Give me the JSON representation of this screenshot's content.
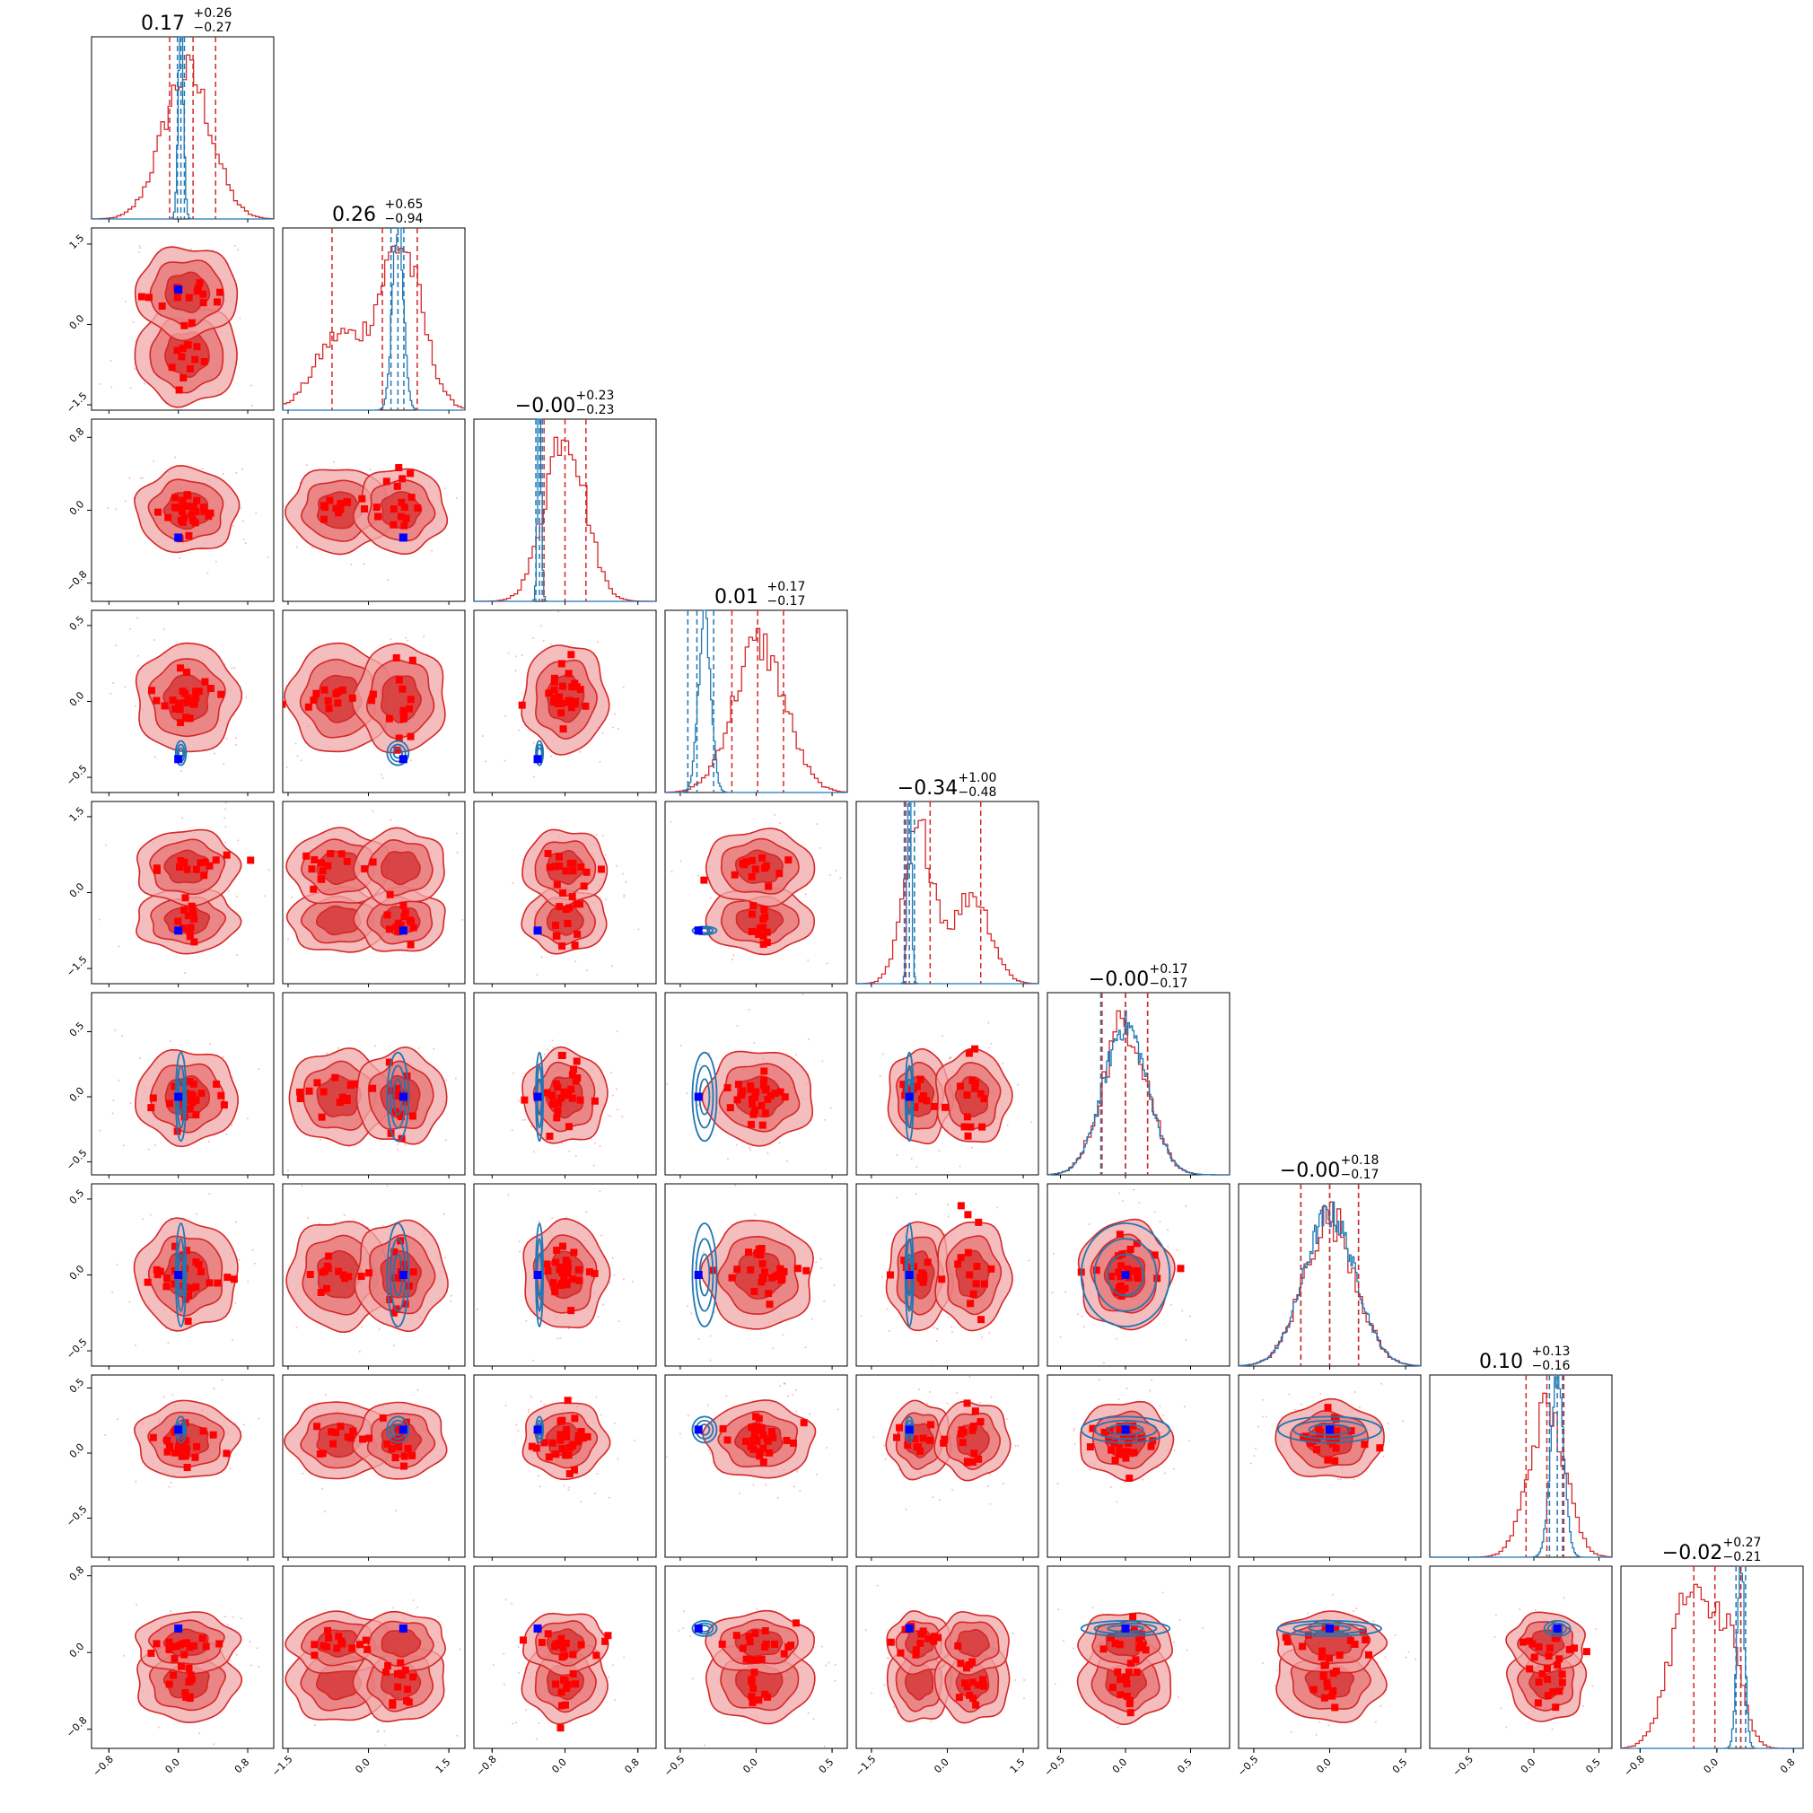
{
  "chart_data": {
    "type": "corner",
    "n_params": 9,
    "colors": {
      "posterior": "#d62728",
      "reference": "#1f77b4",
      "truth_marker": "#0000ff",
      "frame": "#000000"
    },
    "diagonal_titles": [
      {
        "median": "0.17",
        "plus": "+0.26",
        "minus": "−0.27"
      },
      {
        "median": "0.26",
        "plus": "+0.65",
        "minus": "−0.94"
      },
      {
        "median": "−0.00",
        "plus": "+0.23",
        "minus": "−0.23"
      },
      {
        "median": "0.01",
        "plus": "+0.17",
        "minus": "−0.17"
      },
      {
        "median": "−0.34",
        "plus": "+1.00",
        "minus": "−0.48"
      },
      {
        "median": "−0.00",
        "plus": "+0.17",
        "minus": "−0.17"
      },
      {
        "median": "−0.00",
        "plus": "+0.18",
        "minus": "−0.17"
      },
      {
        "median": "0.10",
        "plus": "+0.13",
        "minus": "−0.16"
      },
      {
        "median": "−0.02",
        "plus": "+0.27",
        "minus": "−0.21"
      }
    ],
    "params": [
      {
        "range": [
          -1.0,
          1.1
        ],
        "ticks": [
          -0.8,
          0.0,
          0.8
        ],
        "tick_labels": [
          "−0.8",
          "0.0",
          "0.8"
        ],
        "truth": 0.0,
        "red_modes": [
          [
            0.1,
            0.28,
            1.0
          ]
        ],
        "red_quantiles": [
          -0.1,
          0.17,
          0.43
        ],
        "blue_mean": 0.03,
        "blue_sd": 0.03,
        "blue_quantiles": [
          -0.01,
          0.03,
          0.07
        ]
      },
      {
        "range": [
          -1.6,
          1.8
        ],
        "ticks": [
          -1.5,
          0.0,
          1.5
        ],
        "tick_labels": [
          "−1.5",
          "0.0",
          "1.5"
        ],
        "truth": 0.65,
        "red_modes": [
          [
            -0.55,
            0.45,
            0.45
          ],
          [
            0.6,
            0.4,
            1.0
          ]
        ],
        "red_quantiles": [
          -0.68,
          0.26,
          0.91
        ],
        "blue_mean": 0.55,
        "blue_sd": 0.1,
        "blue_quantiles": [
          0.42,
          0.55,
          0.66
        ]
      },
      {
        "range": [
          -1.0,
          1.0
        ],
        "ticks": [
          -0.8,
          0.0,
          0.8
        ],
        "tick_labels": [
          "−0.8",
          "0.0",
          "0.8"
        ],
        "truth": -0.3,
        "red_modes": [
          [
            0.0,
            0.22,
            1.0
          ]
        ],
        "red_quantiles": [
          -0.23,
          0.0,
          0.23
        ],
        "blue_mean": -0.28,
        "blue_sd": 0.02,
        "blue_quantiles": [
          -0.32,
          -0.28,
          -0.25
        ]
      },
      {
        "range": [
          -0.6,
          0.6
        ],
        "ticks": [
          -0.5,
          0.0,
          0.5
        ],
        "tick_labels": [
          "−0.5",
          "0.0",
          "0.5"
        ],
        "truth": -0.38,
        "red_modes": [
          [
            0.02,
            0.17,
            1.0
          ]
        ],
        "red_quantiles": [
          -0.16,
          0.01,
          0.18
        ],
        "blue_mean": -0.34,
        "blue_sd": 0.04,
        "blue_quantiles": [
          -0.45,
          -0.39,
          -0.28
        ]
      },
      {
        "range": [
          -1.8,
          1.8
        ],
        "ticks": [
          -1.5,
          0.0,
          1.5
        ],
        "tick_labels": [
          "−1.5",
          "0.0",
          "1.5"
        ],
        "truth": -0.75,
        "red_modes": [
          [
            -0.55,
            0.3,
            1.0
          ],
          [
            0.5,
            0.35,
            0.6
          ]
        ],
        "red_quantiles": [
          -0.82,
          -0.34,
          0.66
        ],
        "blue_mean": -0.75,
        "blue_sd": 0.04,
        "blue_quantiles": [
          -0.85,
          -0.75,
          -0.65
        ]
      },
      {
        "range": [
          -0.6,
          0.8
        ],
        "ticks": [
          -0.5,
          0.0,
          0.5
        ],
        "tick_labels": [
          "−0.5",
          "0.0",
          "0.5"
        ],
        "truth": 0.0,
        "red_modes": [
          [
            0.0,
            0.17,
            1.0
          ]
        ],
        "red_quantiles": [
          -0.18,
          0.0,
          0.17
        ],
        "blue_mean": 0.0,
        "blue_sd": 0.17,
        "blue_quantiles": [
          -0.19,
          0.0,
          0.17
        ]
      },
      {
        "range": [
          -0.6,
          0.6
        ],
        "ticks": [
          -0.5,
          0.0,
          0.5
        ],
        "tick_labels": [
          "−0.5",
          "0.0",
          "0.5"
        ],
        "truth": 0.0,
        "red_modes": [
          [
            0.0,
            0.17,
            1.0
          ]
        ],
        "red_quantiles": [
          -0.19,
          0.0,
          0.19
        ],
        "blue_mean": 0.0,
        "blue_sd": 0.17,
        "blue_quantiles": [
          -0.19,
          0.0,
          0.19
        ]
      },
      {
        "range": [
          -0.8,
          0.6
        ],
        "ticks": [
          -0.5,
          0.0,
          0.5
        ],
        "tick_labels": [
          "−0.5",
          "0.0",
          "0.5"
        ],
        "truth": 0.18,
        "red_modes": [
          [
            0.1,
            0.14,
            1.0
          ]
        ],
        "red_quantiles": [
          -0.06,
          0.1,
          0.23
        ],
        "blue_mean": 0.18,
        "blue_sd": 0.05,
        "blue_quantiles": [
          0.12,
          0.18,
          0.22
        ]
      },
      {
        "range": [
          -1.0,
          0.9
        ],
        "ticks": [
          -0.8,
          0.0,
          0.8
        ],
        "tick_labels": [
          "−0.8",
          "0.0",
          "0.8"
        ],
        "truth": 0.25,
        "red_modes": [
          [
            -0.3,
            0.2,
            0.6
          ],
          [
            0.1,
            0.15,
            0.45
          ]
        ],
        "red_quantiles": [
          -0.24,
          -0.02,
          0.25
        ],
        "blue_mean": 0.25,
        "blue_sd": 0.04,
        "blue_quantiles": [
          0.2,
          0.25,
          0.3
        ]
      }
    ]
  }
}
